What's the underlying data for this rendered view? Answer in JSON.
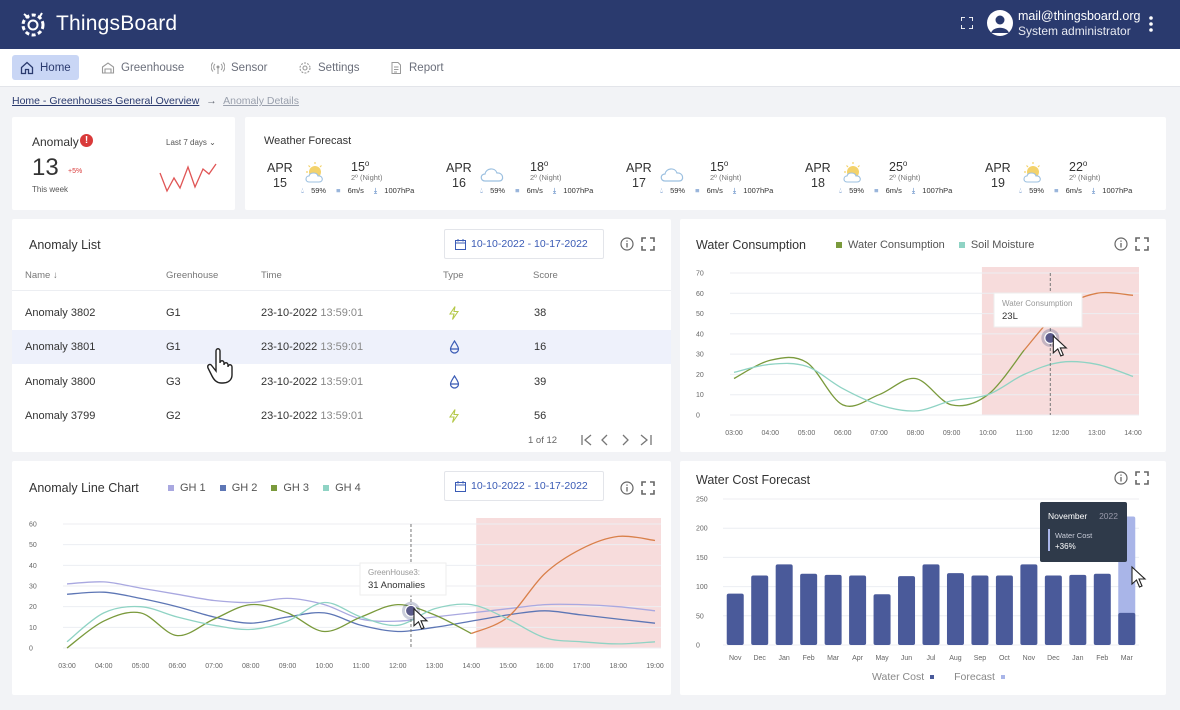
{
  "app": {
    "title": "ThingsBoard"
  },
  "user": {
    "email": "mail@thingsboard.org",
    "role": "System administrator"
  },
  "nav": {
    "tabs": [
      {
        "label": "Home",
        "icon": "home-icon"
      },
      {
        "label": "Greenhouse",
        "icon": "greenhouse-icon"
      },
      {
        "label": "Sensor",
        "icon": "sensor-icon"
      },
      {
        "label": "Settings",
        "icon": "gear-icon"
      },
      {
        "label": "Report",
        "icon": "report-icon"
      }
    ]
  },
  "breadcrumb": {
    "parent": "Home - Greenhouses General Overview",
    "current": "Anomaly Details"
  },
  "anomaly_kpi": {
    "title": "Anomaly",
    "range": "Last 7 days",
    "value": "13",
    "delta": "+5%",
    "subtitle": "This week"
  },
  "weather": {
    "title": "Weather Forecast",
    "days": [
      {
        "month": "APR",
        "day": "15",
        "icon": "sun-cloud-icon",
        "temp": "15",
        "night": "2º (Night)",
        "humidity": "59%",
        "wind": "6m/s",
        "pressure": "1007hPa"
      },
      {
        "month": "APR",
        "day": "16",
        "icon": "cloud-icon",
        "temp": "18",
        "night": "2º (Night)",
        "humidity": "59%",
        "wind": "6m/s",
        "pressure": "1007hPa"
      },
      {
        "month": "APR",
        "day": "17",
        "icon": "cloud-icon",
        "temp": "15",
        "night": "2º (Night)",
        "humidity": "59%",
        "wind": "6m/s",
        "pressure": "1007hPa"
      },
      {
        "month": "APR",
        "day": "18",
        "icon": "sun-cloud-icon",
        "temp": "25",
        "night": "2º (Night)",
        "humidity": "59%",
        "wind": "6m/s",
        "pressure": "1007hPa"
      },
      {
        "month": "APR",
        "day": "19",
        "icon": "sun-cloud-icon",
        "temp": "22",
        "night": "2º (Night)",
        "humidity": "59%",
        "wind": "6m/s",
        "pressure": "1007hPa"
      }
    ]
  },
  "anomaly_list": {
    "title": "Anomaly List",
    "date_range": "10-10-2022 - 10-17-2022",
    "columns": [
      "Name",
      "Greenhouse",
      "Time",
      "Type",
      "Score"
    ],
    "rows": [
      {
        "name": "Anomaly 3802",
        "greenhouse": "G1",
        "date": "23-10-2022",
        "time": "13:59:01",
        "type": "bolt-icon",
        "score": "38"
      },
      {
        "name": "Anomaly 3801",
        "greenhouse": "G1",
        "date": "23-10-2022",
        "time": "13:59:01",
        "type": "drop-icon",
        "score": "16"
      },
      {
        "name": "Anomaly 3800",
        "greenhouse": "G3",
        "date": "23-10-2022",
        "time": "13:59:01",
        "type": "drop-icon",
        "score": "39"
      },
      {
        "name": "Anomaly 3799",
        "greenhouse": "G2",
        "date": "23-10-2022",
        "time": "13:59:01",
        "type": "bolt-icon",
        "score": "56"
      }
    ],
    "pagination": "1 of 12"
  },
  "colors": {
    "navy": "#2a3a6e",
    "olive": "#7a9a3c",
    "teal": "#8fd3c4",
    "lavender": "#a9a8e0",
    "blue": "#5d76b5",
    "orange": "#d9804a",
    "bar": "#4a5a9a",
    "forecast": "#a9b5e8",
    "anomaly_zone": "#f7dcdc"
  },
  "charts": {
    "water_consumption": {
      "title": "Water Consumption",
      "legend": [
        "Water Consumption",
        "Soil Moisture"
      ],
      "tooltip": {
        "title": "Water Consumption",
        "value": "23L"
      }
    },
    "anomaly_line": {
      "title": "Anomaly Line Chart",
      "legend": [
        "GH 1",
        "GH 2",
        "GH 3",
        "GH 4"
      ],
      "date_range": "10-10-2022 - 10-17-2022",
      "tooltip": {
        "title": "GreenHouse3:",
        "value": "31 Anomalies"
      }
    },
    "water_cost": {
      "title": "Water Cost Forecast",
      "legend": [
        "Water Cost",
        "Forecast"
      ],
      "tooltip": {
        "month": "November",
        "year": "2022",
        "label": "Water Cost",
        "value": "+36%"
      }
    }
  },
  "chart_data": [
    {
      "type": "line",
      "title": "Water Consumption",
      "x": [
        "03:00",
        "04:00",
        "05:00",
        "06:00",
        "07:00",
        "08:00",
        "09:00",
        "10:00",
        "11:00",
        "12:00",
        "13:00",
        "14:00"
      ],
      "ylim": [
        0,
        70
      ],
      "yticks": [
        0,
        10,
        20,
        30,
        40,
        50,
        60,
        70
      ],
      "series": [
        {
          "name": "Water Consumption",
          "values": [
            18,
            27,
            26,
            5,
            10,
            18,
            5,
            10,
            32,
            52,
            60,
            59
          ]
        },
        {
          "name": "Soil Moisture",
          "values": [
            21,
            25,
            24,
            13,
            5,
            2,
            7,
            10,
            20,
            26,
            25,
            19
          ]
        }
      ],
      "anomaly_range": [
        "10:00",
        "14:00"
      ]
    },
    {
      "type": "line",
      "title": "Anomaly Line Chart",
      "x": [
        "03:00",
        "04:00",
        "05:00",
        "06:00",
        "07:00",
        "08:00",
        "09:00",
        "10:00",
        "11:00",
        "12:00",
        "13:00",
        "14:00",
        "15:00",
        "16:00",
        "17:00",
        "18:00",
        "19:00"
      ],
      "ylim": [
        0,
        60
      ],
      "yticks": [
        0,
        10,
        20,
        30,
        40,
        50,
        60
      ],
      "series": [
        {
          "name": "GH 1",
          "values": [
            31,
            32,
            29,
            26,
            23,
            22,
            24,
            21,
            14,
            13,
            15,
            17,
            19,
            21,
            21,
            20,
            18
          ]
        },
        {
          "name": "GH 2",
          "values": [
            26,
            27,
            24,
            20,
            15,
            12,
            15,
            17,
            11,
            8,
            10,
            13,
            16,
            18,
            16,
            14,
            12
          ]
        },
        {
          "name": "GH 3",
          "values": [
            0,
            13,
            17,
            6,
            14,
            21,
            17,
            8,
            15,
            21,
            16,
            7,
            15,
            36,
            48,
            54,
            52
          ]
        },
        {
          "name": "GH 4",
          "values": [
            3,
            17,
            20,
            15,
            11,
            9,
            13,
            22,
            15,
            11,
            19,
            21,
            14,
            5,
            3,
            2,
            3
          ]
        }
      ],
      "anomaly_range": [
        "14:00",
        "19:00"
      ]
    },
    {
      "type": "bar",
      "title": "Water Cost Forecast",
      "categories": [
        "Nov",
        "Dec",
        "Jan",
        "Feb",
        "Mar",
        "Apr",
        "May",
        "Jun",
        "Jul",
        "Aug",
        "Sep",
        "Oct",
        "Nov",
        "Dec",
        "Jan",
        "Feb",
        "Mar"
      ],
      "ylim": [
        0,
        250
      ],
      "yticks": [
        0,
        50,
        100,
        150,
        200,
        250
      ],
      "series": [
        {
          "name": "Water Cost",
          "values": [
            88,
            119,
            138,
            122,
            120,
            119,
            87,
            118,
            138,
            123,
            119,
            119,
            138,
            119,
            120,
            122,
            55
          ]
        },
        {
          "name": "Forecast",
          "values": [
            0,
            0,
            0,
            0,
            0,
            0,
            0,
            0,
            0,
            0,
            0,
            0,
            0,
            0,
            0,
            0,
            220
          ]
        }
      ]
    }
  ]
}
